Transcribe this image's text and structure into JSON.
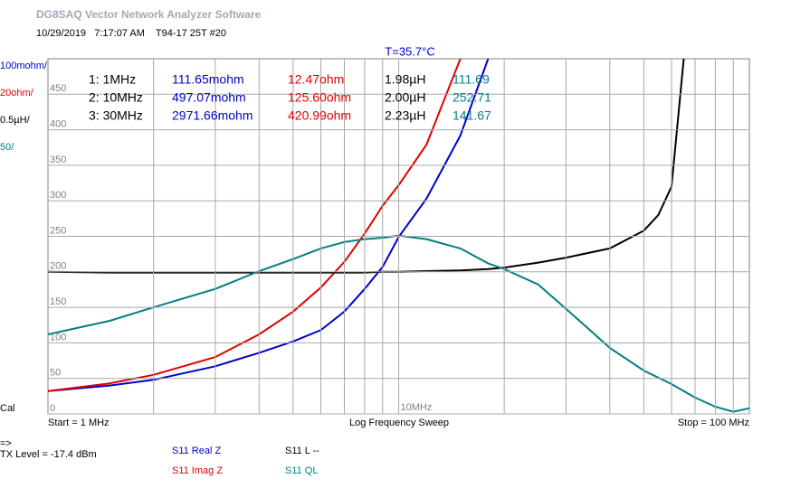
{
  "window": {
    "title": "DG8SAQ Vector Network Analyzer Software",
    "timestamp": "10/29/2019   7:17:07 AM    T94-17 25T #20",
    "temperature": "T=35.7°C"
  },
  "chart_data": {
    "type": "line",
    "xscale": "log",
    "x": [
      1,
      1.5,
      2,
      3,
      4,
      5,
      6,
      7,
      8,
      9,
      10,
      12,
      15,
      18,
      20,
      25,
      30,
      40,
      50,
      55,
      60,
      65,
      70,
      80,
      90,
      100
    ],
    "series": [
      {
        "name": "S11  Real Z",
        "color": "#0000c8",
        "values": [
          32,
          40,
          48,
          67,
          86,
          102,
          118,
          144,
          176,
          207,
          249,
          303,
          392,
          500,
          null,
          null,
          null,
          null,
          null,
          null,
          null,
          null,
          null,
          null,
          null,
          null
        ]
      },
      {
        "name": "S11  Imag Z",
        "color": "#e00000",
        "values": [
          32,
          43,
          55,
          80,
          112,
          144,
          178,
          214,
          254,
          293,
          322,
          379,
          500,
          null,
          null,
          null,
          null,
          null,
          null,
          null,
          null,
          null,
          null,
          null,
          null,
          null
        ]
      },
      {
        "name": "S11  L --",
        "color": "#000000",
        "values": [
          200,
          199,
          199,
          199,
          199,
          199,
          199,
          199,
          199,
          200,
          200,
          201,
          202,
          204,
          206,
          213,
          220,
          233,
          258,
          280,
          320,
          500,
          null,
          null,
          null,
          null
        ]
      },
      {
        "name": "S11  QL",
        "color": "#008080",
        "values": [
          112,
          131,
          150,
          176,
          201,
          218,
          233,
          242,
          246,
          248,
          251,
          246,
          233,
          212,
          204,
          182,
          148,
          93,
          61,
          51,
          42,
          32,
          23,
          10,
          3,
          8
        ]
      }
    ],
    "xlim": [
      1,
      100
    ],
    "ylim": [
      0,
      500
    ],
    "yticks": [
      0,
      50,
      100,
      150,
      200,
      250,
      300,
      350,
      400,
      450
    ],
    "xgrid": [
      2,
      3,
      4,
      5,
      6,
      7,
      8,
      9,
      10,
      20,
      30,
      40,
      50,
      60,
      70,
      80,
      90
    ],
    "xtick_labels": [
      {
        "value": 10,
        "label": "10MHz"
      }
    ],
    "scale_labels": [
      {
        "label": "100mohm/",
        "color": "#0000c8"
      },
      {
        "label": "20ohm/",
        "color": "#e00000"
      },
      {
        "label": "0.5µH/",
        "color": "#000000"
      },
      {
        "label": "50/",
        "color": "#008080"
      }
    ],
    "grid": true,
    "marker_table": [
      [
        "1: 1MHz",
        "111.65mohm",
        "12.47ohm",
        "1.98µH",
        "111.69"
      ],
      [
        "2: 10MHz",
        "497.07mohm",
        "125.60ohm",
        "2.00µH",
        "252.71"
      ],
      [
        "3: 30MHz",
        "2971.66mohm",
        "420.99ohm",
        "2.23µH",
        "141.67"
      ]
    ],
    "cal": "Cal",
    "start": "Start = 1 MHz",
    "sweep": "Log Frequency Sweep",
    "stop": "Stop = 100 MHz"
  },
  "status": {
    "arrow": "=>",
    "tx_level": "TX Level = -17.4 dBm"
  }
}
